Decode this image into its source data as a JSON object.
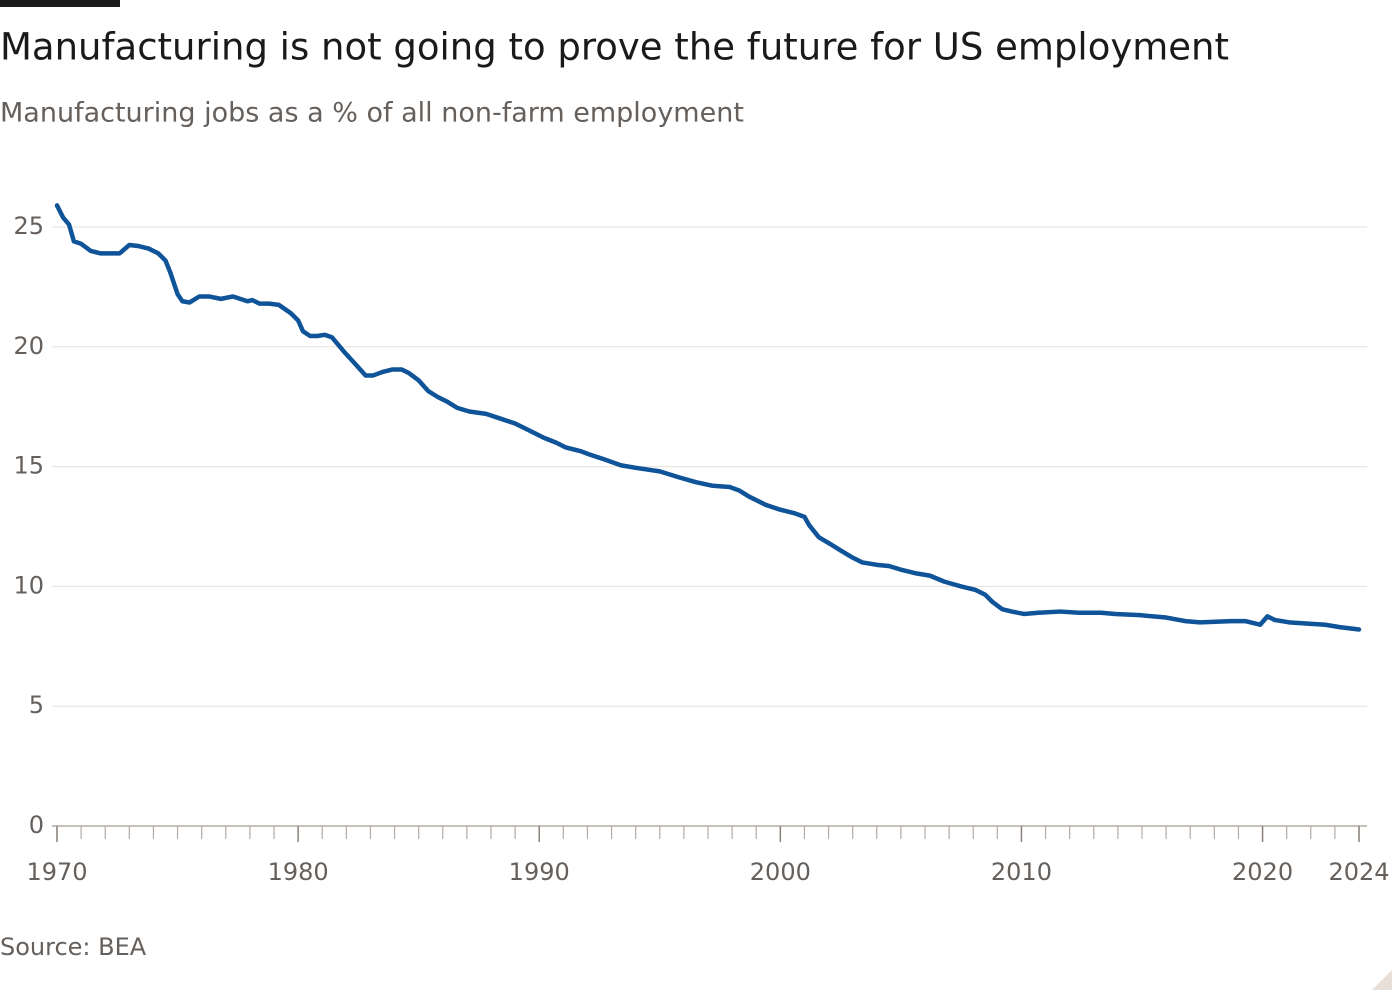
{
  "chart_data": {
    "type": "line",
    "title": "Manufacturing is not going to prove the future for US employment",
    "subtitle": "Manufacturing jobs as a % of all non-farm employment",
    "source": "Source: BEA",
    "color": "#0f5499",
    "grid": true,
    "xlim": [
      1970,
      2024
    ],
    "ylim": [
      0,
      25
    ],
    "xticks": [
      1970,
      1980,
      1990,
      2000,
      2010,
      2020,
      2024
    ],
    "xminorticks": [
      1970,
      1971,
      1972,
      1973,
      1974,
      1975,
      1976,
      1977,
      1978,
      1979,
      1980,
      1981,
      1982,
      1983,
      1984,
      1985,
      1986,
      1987,
      1988,
      1989,
      1990,
      1991,
      1992,
      1993,
      1994,
      1995,
      1996,
      1997,
      1998,
      1999,
      2000,
      2001,
      2002,
      2003,
      2004,
      2005,
      2006,
      2007,
      2008,
      2009,
      2010,
      2011,
      2012,
      2013,
      2014,
      2015,
      2016,
      2017,
      2018,
      2019,
      2020,
      2021,
      2022,
      2023,
      2024
    ],
    "yticks": [
      0,
      5,
      10,
      15,
      20,
      25
    ],
    "x": [
      1970.0,
      1970.25,
      1970.5,
      1970.7,
      1971.0,
      1971.4,
      1971.8,
      1972.3,
      1972.6,
      1973.0,
      1973.4,
      1973.8,
      1974.2,
      1974.5,
      1974.7,
      1975.0,
      1975.2,
      1975.5,
      1975.9,
      1976.3,
      1976.8,
      1977.3,
      1977.6,
      1977.9,
      1978.1,
      1978.4,
      1978.8,
      1979.2,
      1979.7,
      1980.0,
      1980.2,
      1980.5,
      1980.8,
      1981.1,
      1981.4,
      1981.9,
      1982.4,
      1982.8,
      1983.1,
      1983.5,
      1983.9,
      1984.3,
      1984.6,
      1985.0,
      1985.4,
      1985.8,
      1986.2,
      1986.6,
      1987.1,
      1987.8,
      1988.4,
      1989.0,
      1989.6,
      1990.2,
      1990.7,
      1991.1,
      1991.7,
      1992.1,
      1992.7,
      1993.4,
      1994.0,
      1995.0,
      1995.8,
      1996.5,
      1997.2,
      1997.9,
      1998.3,
      1998.7,
      1999.4,
      2000.0,
      2000.6,
      2001.0,
      2001.2,
      2001.6,
      2002.1,
      2002.5,
      2003.0,
      2003.4,
      2004.0,
      2004.5,
      2005.0,
      2005.6,
      2006.2,
      2006.8,
      2007.5,
      2008.1,
      2008.5,
      2008.8,
      2009.2,
      2009.6,
      2010.1,
      2010.7,
      2011.6,
      2012.4,
      2013.3,
      2013.9,
      2014.9,
      2016.0,
      2016.8,
      2017.4,
      2018.7,
      2019.3,
      2019.9,
      2020.2,
      2020.5,
      2021.1,
      2021.8,
      2022.6,
      2023.2,
      2024.0
    ],
    "values": [
      25.9,
      25.4,
      25.1,
      24.4,
      24.3,
      24.0,
      23.9,
      23.9,
      23.9,
      24.25,
      24.2,
      24.1,
      23.9,
      23.6,
      23.1,
      22.2,
      21.9,
      21.85,
      22.1,
      22.1,
      22.0,
      22.1,
      22.0,
      21.9,
      21.95,
      21.8,
      21.8,
      21.75,
      21.4,
      21.1,
      20.65,
      20.45,
      20.45,
      20.5,
      20.4,
      19.8,
      19.25,
      18.8,
      18.8,
      18.95,
      19.05,
      19.05,
      18.9,
      18.6,
      18.15,
      17.9,
      17.7,
      17.45,
      17.3,
      17.2,
      17.0,
      16.8,
      16.5,
      16.2,
      16.0,
      15.8,
      15.65,
      15.5,
      15.3,
      15.05,
      14.95,
      14.8,
      14.55,
      14.35,
      14.2,
      14.15,
      14.0,
      13.75,
      13.4,
      13.2,
      13.05,
      12.9,
      12.55,
      12.05,
      11.75,
      11.5,
      11.2,
      11.0,
      10.9,
      10.85,
      10.7,
      10.55,
      10.45,
      10.2,
      10.0,
      9.85,
      9.65,
      9.35,
      9.05,
      8.95,
      8.85,
      8.9,
      8.95,
      8.9,
      8.9,
      8.85,
      8.8,
      8.7,
      8.55,
      8.5,
      8.55,
      8.55,
      8.4,
      8.75,
      8.6,
      8.5,
      8.45,
      8.4,
      8.3,
      8.2
    ]
  }
}
